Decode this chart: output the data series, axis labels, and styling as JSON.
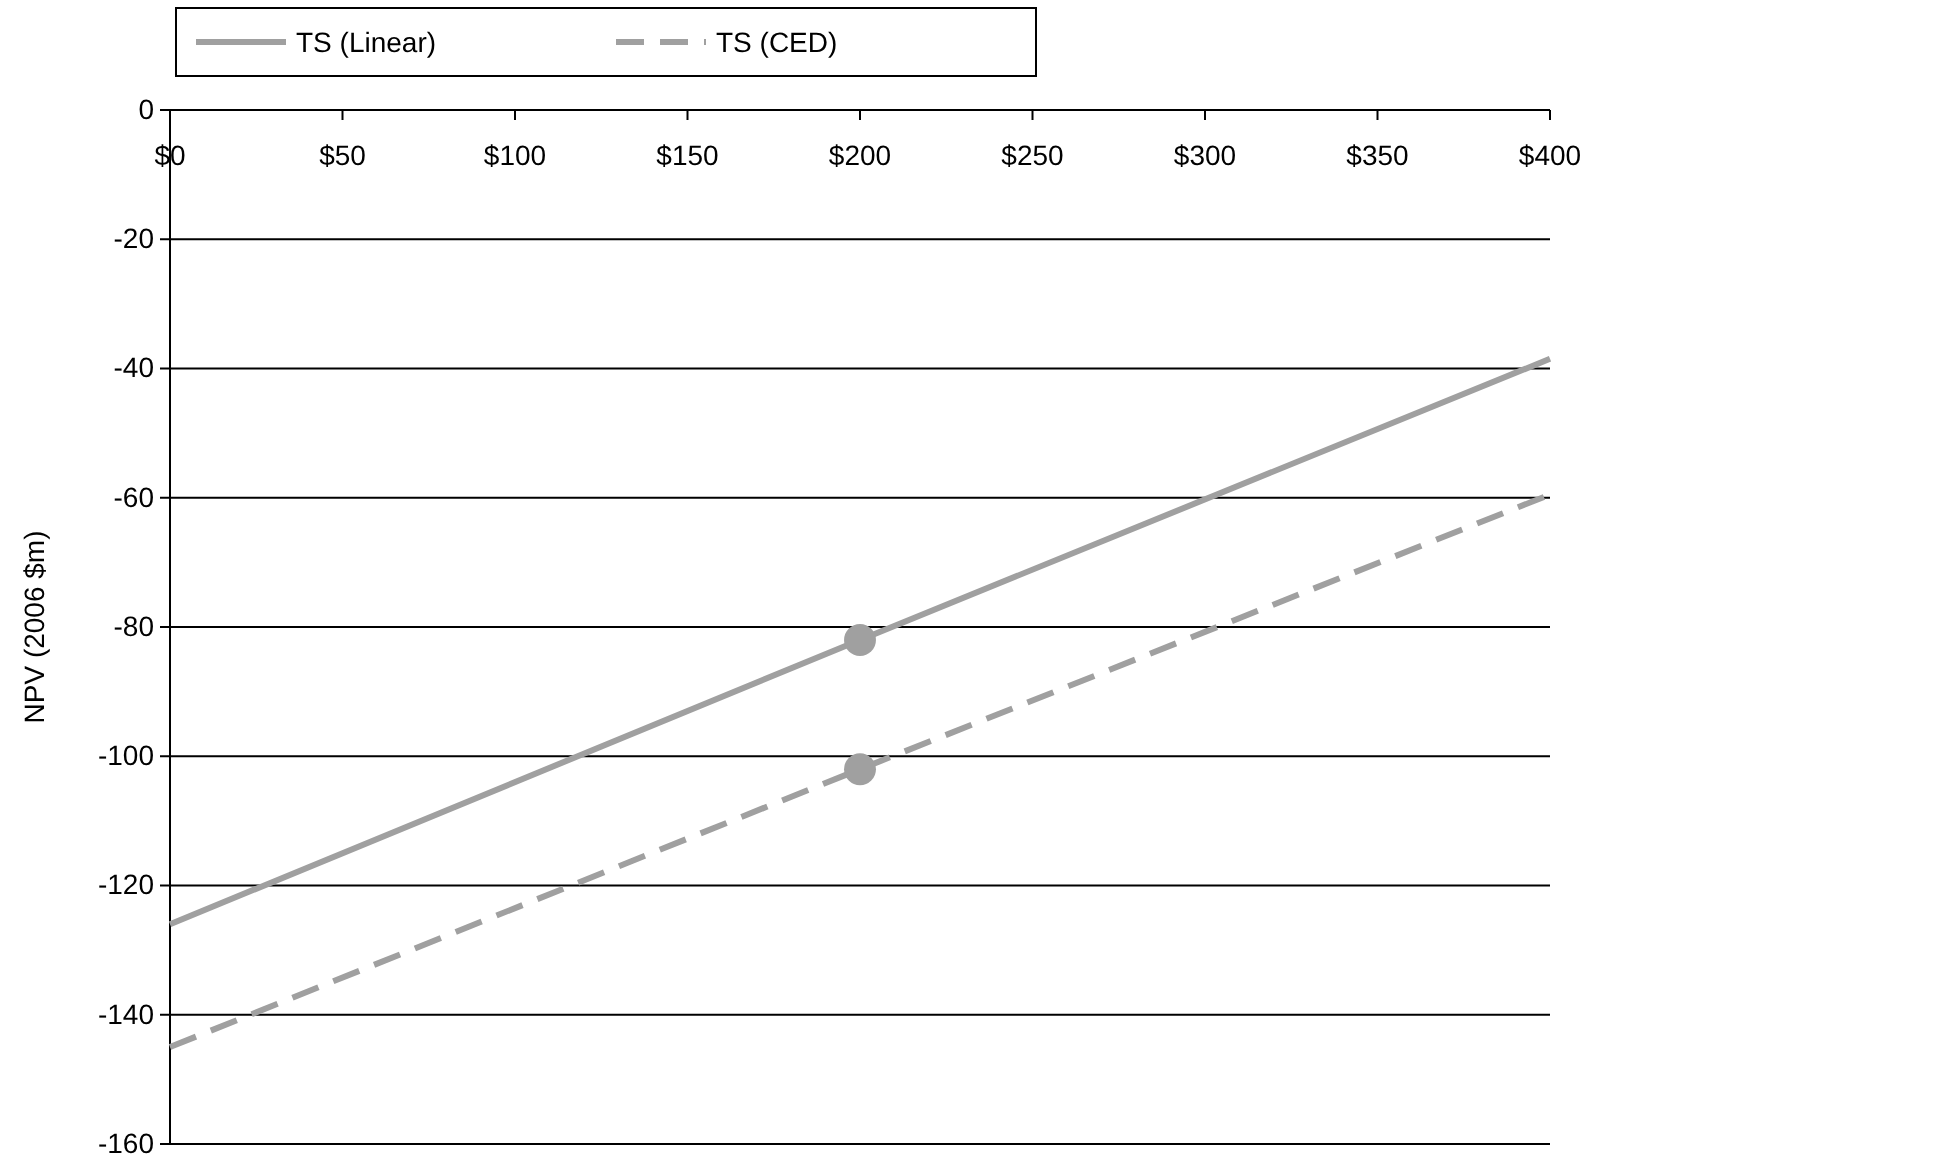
{
  "chart_data": {
    "type": "line",
    "ylabel": "NPV (2006 $m)",
    "xlim": [
      0,
      400
    ],
    "xticks": [
      {
        "value": 0,
        "label": "$0"
      },
      {
        "value": 50,
        "label": "$50"
      },
      {
        "value": 100,
        "label": "$100"
      },
      {
        "value": 150,
        "label": "$150"
      },
      {
        "value": 200,
        "label": "$200"
      },
      {
        "value": 250,
        "label": "$250"
      },
      {
        "value": 300,
        "label": "$300"
      },
      {
        "value": 350,
        "label": "$350"
      },
      {
        "value": 400,
        "label": "$400"
      }
    ],
    "ylim": [
      -160,
      0
    ],
    "yticks": [
      -160,
      -140,
      -120,
      -100,
      -80,
      -60,
      -40,
      -20,
      0
    ],
    "grid": "y",
    "legend": "top left",
    "series": [
      {
        "name": "TS (Linear)",
        "color": "#a0a0a0",
        "line_style": "solid",
        "x": [
          0,
          200,
          400
        ],
        "values": [
          -126,
          -82,
          -38.5
        ]
      },
      {
        "name": "TS (CED)",
        "color": "#a0a0a0",
        "line_style": "dashed",
        "x": [
          0,
          200,
          400
        ],
        "values": [
          -145,
          -102,
          -59.5
        ]
      },
      {
        "type": "scatter",
        "marker": "circle",
        "color": "#a0a0a0",
        "x": [
          200,
          200
        ],
        "values": [
          -82,
          -102
        ]
      }
    ]
  }
}
